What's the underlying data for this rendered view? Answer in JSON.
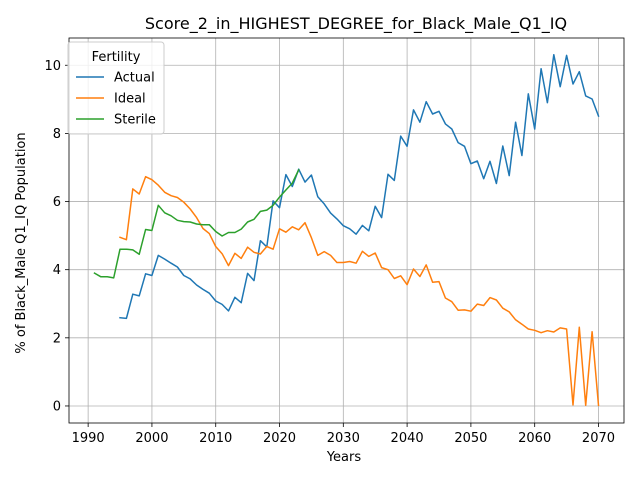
{
  "chart_data": {
    "type": "line",
    "title": "Score_2_in_HIGHEST_DEGREE_for_Black_Male_Q1_IQ",
    "xlabel": "Years",
    "ylabel": "% of Black_Male Q1_IQ Population",
    "xlim": [
      1987,
      2074
    ],
    "ylim": [
      -0.5,
      10.8
    ],
    "xticks": [
      1990,
      2000,
      2010,
      2020,
      2030,
      2040,
      2050,
      2060,
      2070
    ],
    "yticks": [
      0,
      2,
      4,
      6,
      8,
      10
    ],
    "grid": true,
    "legend": {
      "title": "Fertility",
      "position": "top-left"
    },
    "series": [
      {
        "name": "Actual",
        "color": "#1f77b4",
        "x": [
          1995,
          1996,
          1997,
          1998,
          1999,
          2000,
          2001,
          2002,
          2003,
          2004,
          2005,
          2006,
          2007,
          2008,
          2009,
          2010,
          2011,
          2012,
          2013,
          2014,
          2015,
          2016,
          2017,
          2018,
          2019,
          2020,
          2021,
          2022,
          2023,
          2024,
          2025,
          2026,
          2027,
          2028,
          2029,
          2030,
          2031,
          2032,
          2033,
          2034,
          2035,
          2036,
          2037,
          2038,
          2039,
          2040,
          2041,
          2042,
          2043,
          2044,
          2045,
          2046,
          2047,
          2048,
          2049,
          2050,
          2051,
          2052,
          2053,
          2054,
          2055,
          2056,
          2057,
          2058,
          2059,
          2060,
          2061,
          2062,
          2063,
          2064,
          2065,
          2066,
          2067,
          2068,
          2069,
          2070
        ],
        "values": [
          2.59,
          2.57,
          3.28,
          3.23,
          3.88,
          3.83,
          4.42,
          4.31,
          4.19,
          4.08,
          3.83,
          3.73,
          3.55,
          3.42,
          3.31,
          3.08,
          2.98,
          2.79,
          3.19,
          3.03,
          3.89,
          3.68,
          4.85,
          4.67,
          6.02,
          5.82,
          6.79,
          6.44,
          6.95,
          6.57,
          6.78,
          6.14,
          5.93,
          5.66,
          5.49,
          5.29,
          5.2,
          5.04,
          5.3,
          5.14,
          5.86,
          5.53,
          6.8,
          6.62,
          7.92,
          7.62,
          8.69,
          8.33,
          8.93,
          8.57,
          8.65,
          8.28,
          8.13,
          7.73,
          7.62,
          7.11,
          7.19,
          6.67,
          7.18,
          6.53,
          7.63,
          6.76,
          8.33,
          7.35,
          9.16,
          8.13,
          9.9,
          8.9,
          10.31,
          9.37,
          10.29,
          9.45,
          9.81,
          9.1,
          9.01,
          8.51
        ]
      },
      {
        "name": "Ideal",
        "color": "#ff7f0e",
        "x": [
          1995,
          1996,
          1997,
          1998,
          1999,
          2000,
          2001,
          2002,
          2003,
          2004,
          2005,
          2006,
          2007,
          2008,
          2009,
          2010,
          2011,
          2012,
          2013,
          2014,
          2015,
          2016,
          2017,
          2018,
          2019,
          2020,
          2021,
          2022,
          2023,
          2024,
          2025,
          2026,
          2027,
          2028,
          2029,
          2030,
          2031,
          2032,
          2033,
          2034,
          2035,
          2036,
          2037,
          2038,
          2039,
          2040,
          2041,
          2042,
          2043,
          2044,
          2045,
          2046,
          2047,
          2048,
          2049,
          2050,
          2051,
          2052,
          2053,
          2054,
          2055,
          2056,
          2057,
          2058,
          2059,
          2060,
          2061,
          2062,
          2063,
          2064,
          2065,
          2066,
          2067,
          2068,
          2069,
          2070
        ],
        "values": [
          4.95,
          4.88,
          6.37,
          6.22,
          6.73,
          6.64,
          6.48,
          6.27,
          6.17,
          6.12,
          5.98,
          5.78,
          5.53,
          5.21,
          5.06,
          4.68,
          4.47,
          4.12,
          4.48,
          4.33,
          4.66,
          4.51,
          4.46,
          4.68,
          4.6,
          5.2,
          5.1,
          5.26,
          5.17,
          5.38,
          4.94,
          4.42,
          4.53,
          4.42,
          4.21,
          4.21,
          4.24,
          4.19,
          4.54,
          4.39,
          4.49,
          4.06,
          4.0,
          3.74,
          3.82,
          3.56,
          4.02,
          3.8,
          4.14,
          3.63,
          3.65,
          3.17,
          3.06,
          2.81,
          2.82,
          2.78,
          2.99,
          2.95,
          3.18,
          3.11,
          2.87,
          2.76,
          2.53,
          2.4,
          2.26,
          2.22,
          2.15,
          2.21,
          2.17,
          2.29,
          2.26,
          0.03,
          2.31,
          0.02,
          2.18,
          0.02
        ]
      },
      {
        "name": "Sterile",
        "color": "#2ca02c",
        "x": [
          1991,
          1992,
          1993,
          1994,
          1995,
          1996,
          1997,
          1998,
          1999,
          2000,
          2001,
          2002,
          2003,
          2004,
          2005,
          2006,
          2007,
          2008,
          2009,
          2010,
          2011,
          2012,
          2013,
          2014,
          2015,
          2016,
          2017,
          2018,
          2019,
          2020,
          2021,
          2022,
          2023
        ],
        "values": [
          3.9,
          3.79,
          3.79,
          3.76,
          4.6,
          4.6,
          4.58,
          4.45,
          5.18,
          5.15,
          5.89,
          5.67,
          5.58,
          5.45,
          5.41,
          5.4,
          5.34,
          5.32,
          5.32,
          5.12,
          4.99,
          5.09,
          5.09,
          5.19,
          5.4,
          5.48,
          5.71,
          5.75,
          5.89,
          6.13,
          6.34,
          6.54,
          6.93
        ]
      }
    ]
  }
}
